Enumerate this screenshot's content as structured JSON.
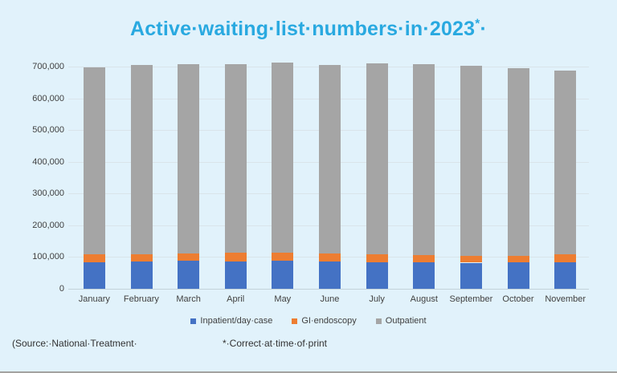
{
  "title": {
    "text": "Active·waiting·list·numbers·in·2023",
    "superscript": "*",
    "trailing_mark": "·"
  },
  "colors": {
    "background": "#e1f2fb",
    "title": "#29a9e0",
    "axis_text": "#404040",
    "gridline": "#d9e4ea",
    "baseline": "#c3d2da",
    "footer_text": "#313131",
    "bottom_border": "#a3a3a0",
    "inpatient": "#4472c4",
    "gi_endoscopy": "#ed7d31",
    "outpatient": "#a5a5a5"
  },
  "legend": {
    "items": [
      {
        "label": "Inpatient/day·case",
        "color": "#4472c4"
      },
      {
        "label": "GI·endoscopy",
        "color": "#ed7d31"
      },
      {
        "label": "Outpatient",
        "color": "#a5a5a5"
      }
    ]
  },
  "footer": {
    "source": "(Source:·National·Treatment·",
    "note": "*·Correct·at·time·of·print"
  },
  "chart_data": {
    "type": "bar",
    "stacked": true,
    "title": "Active waiting list numbers in 2023*",
    "xlabel": "",
    "ylabel": "",
    "ylim": [
      0,
      700000
    ],
    "ytick_step": 100000,
    "yticks": [
      "700,000",
      "600,000",
      "500,000",
      "400,000",
      "300,000",
      "200,000",
      "100,000",
      "0"
    ],
    "grid": true,
    "legend_position": "bottom",
    "categories": [
      "January",
      "February",
      "March",
      "April",
      "May",
      "June",
      "July",
      "August",
      "September",
      "October",
      "November"
    ],
    "series": [
      {
        "name": "Inpatient/day case",
        "color": "#4472c4",
        "values": [
          83000,
          86000,
          88000,
          86000,
          88000,
          86000,
          84000,
          83000,
          82000,
          83000,
          84000
        ]
      },
      {
        "name": "GI endoscopy",
        "color": "#ed7d31",
        "values": [
          26000,
          23000,
          24000,
          27000,
          26000,
          25000,
          25000,
          24000,
          22000,
          21000,
          25000
        ]
      },
      {
        "name": "Outpatient",
        "color": "#a5a5a5",
        "values": [
          588000,
          596000,
          595000,
          595000,
          598000,
          595000,
          601000,
          601000,
          598000,
          591000,
          579000
        ]
      }
    ],
    "totals": [
      697000,
      705000,
      707000,
      708000,
      712000,
      706000,
      710000,
      708000,
      702000,
      695000,
      688000
    ]
  }
}
